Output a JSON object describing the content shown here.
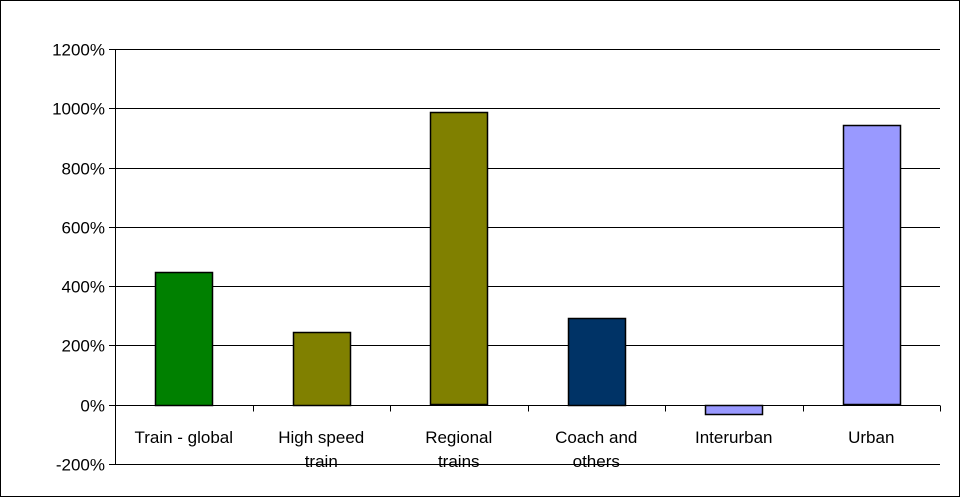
{
  "chart_data": {
    "type": "bar",
    "categories": [
      [
        "Train - global"
      ],
      [
        "High speed",
        "train"
      ],
      [
        "Regional",
        "trains"
      ],
      [
        "Coach and",
        "others"
      ],
      [
        "Interurban"
      ],
      [
        "Urban"
      ]
    ],
    "values": [
      447,
      246,
      986,
      293,
      -30,
      942
    ],
    "bar_colors": [
      "#008000",
      "#808000",
      "#808000",
      "#003366",
      "#9999ff",
      "#9999ff"
    ],
    "ylim": [
      -200,
      1200
    ],
    "yticks": [
      -200,
      0,
      200,
      400,
      600,
      800,
      1000,
      1200
    ],
    "ytick_labels": [
      "-200%",
      "0%",
      "200%",
      "400%",
      "600%",
      "800%",
      "1000%",
      "1200%"
    ],
    "grid": true,
    "title": "",
    "xlabel": "",
    "ylabel": ""
  }
}
